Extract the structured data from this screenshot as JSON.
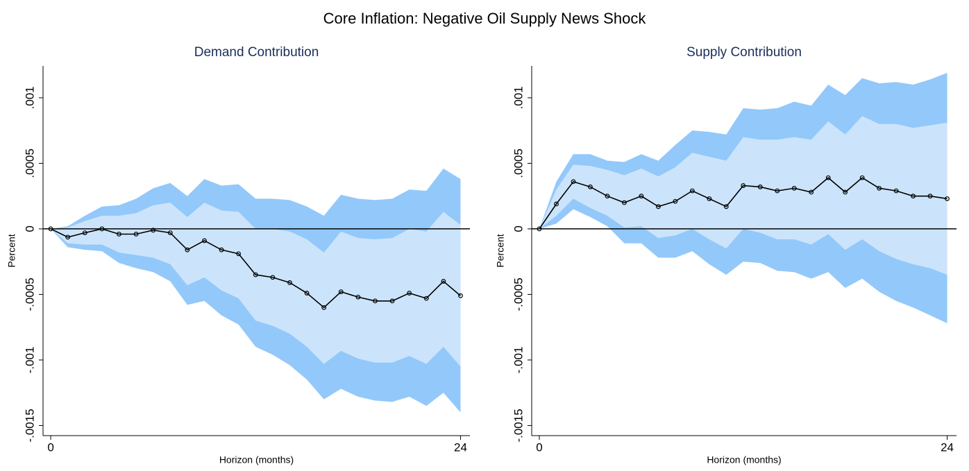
{
  "title": "Core Inflation: Negative Oil Supply News Shock",
  "chart_data": [
    {
      "type": "line",
      "title": "Demand Contribution",
      "xlabel": "Horizon (months)",
      "ylabel": "Percent",
      "x": [
        0,
        1,
        2,
        3,
        4,
        5,
        6,
        7,
        8,
        9,
        10,
        11,
        12,
        13,
        14,
        15,
        16,
        17,
        18,
        19,
        20,
        21,
        22,
        23,
        24
      ],
      "values": [
        0,
        -6.3e-05,
        -3e-05,
        0,
        -4e-05,
        -4e-05,
        -1e-05,
        -3e-05,
        -0.00016,
        -9e-05,
        -0.00016,
        -0.00019,
        -0.00035,
        -0.00037,
        -0.00041,
        -0.00049,
        -0.0006,
        -0.00048,
        -0.00052,
        -0.00055,
        -0.00055,
        -0.00049,
        -0.00053,
        -0.0004,
        -0.00051
      ],
      "color": "#000000",
      "bands": [
        {
          "color": "#93c8fa",
          "upper": [
            0,
            2e-05,
            0.0001,
            0.00017,
            0.00018,
            0.00023,
            0.00031,
            0.00035,
            0.00025,
            0.00038,
            0.00033,
            0.00034,
            0.00023,
            0.00023,
            0.00022,
            0.00017,
            0.0001,
            0.00026,
            0.00023,
            0.00022,
            0.00023,
            0.0003,
            0.00029,
            0.00046,
            0.00038
          ],
          "lower": [
            0,
            -0.00014,
            -0.00016,
            -0.00017,
            -0.00026,
            -0.0003,
            -0.00033,
            -0.0004,
            -0.00058,
            -0.00055,
            -0.00066,
            -0.00073,
            -0.0009,
            -0.00096,
            -0.00104,
            -0.00115,
            -0.0013,
            -0.00122,
            -0.00128,
            -0.00131,
            -0.00132,
            -0.00128,
            -0.00135,
            -0.00125,
            -0.0014
          ]
        },
        {
          "color": "#cbe4fb",
          "upper": [
            0,
            1e-05,
            6e-05,
            0.0001,
            0.0001,
            0.00012,
            0.00018,
            0.0002,
            9e-05,
            0.0002,
            0.00014,
            0.00013,
            0,
            0,
            -2e-05,
            -8e-05,
            -0.00018,
            -2e-05,
            -7e-05,
            -8e-05,
            -7e-05,
            0,
            -2e-05,
            0.00013,
            3e-05
          ],
          "lower": [
            0,
            -0.00011,
            -0.00012,
            -0.00012,
            -0.00018,
            -0.0002,
            -0.00022,
            -0.00027,
            -0.00043,
            -0.00037,
            -0.00047,
            -0.00053,
            -0.0007,
            -0.00074,
            -0.0008,
            -0.0009,
            -0.00103,
            -0.00093,
            -0.00099,
            -0.00102,
            -0.00102,
            -0.00097,
            -0.00103,
            -0.0009,
            -0.00105
          ]
        }
      ],
      "hline": 0,
      "xlim": [
        -0.45,
        24.55
      ],
      "ylim": [
        -0.001577,
        0.001243
      ],
      "xticks": [
        0,
        24
      ],
      "yticks": [
        {
          "value": 0.001,
          "label": ".001"
        },
        {
          "value": 0.0005,
          "label": ".0005"
        },
        0,
        {
          "value": -0.0005,
          "label": "-.0005"
        },
        {
          "value": -0.001,
          "label": "-.001"
        },
        {
          "value": -0.0015,
          "label": "-.0015"
        }
      ]
    },
    {
      "type": "line",
      "title": "Supply Contribution",
      "xlabel": "Horizon (months)",
      "ylabel": "Percent",
      "x": [
        0,
        1,
        2,
        3,
        4,
        5,
        6,
        7,
        8,
        9,
        10,
        11,
        12,
        13,
        14,
        15,
        16,
        17,
        18,
        19,
        20,
        21,
        22,
        23,
        24
      ],
      "values": [
        0,
        0.00019,
        0.00036,
        0.00032,
        0.00025,
        0.0002,
        0.00025,
        0.00017,
        0.00021,
        0.00029,
        0.00023,
        0.00017,
        0.00033,
        0.00032,
        0.00029,
        0.00031,
        0.00028,
        0.00039,
        0.00028,
        0.00039,
        0.00031,
        0.00029,
        0.00025,
        0.00025,
        0.00023
      ],
      "color": "#000000",
      "bands": [
        {
          "color": "#93c8fa",
          "upper": [
            0,
            0.00036,
            0.00057,
            0.00057,
            0.00052,
            0.00051,
            0.00057,
            0.00052,
            0.00064,
            0.00075,
            0.00074,
            0.00072,
            0.00092,
            0.00091,
            0.00092,
            0.00097,
            0.00094,
            0.0011,
            0.00102,
            0.00115,
            0.00111,
            0.00112,
            0.0011,
            0.00114,
            0.00119
          ],
          "lower": [
            0,
            4e-05,
            0.00015,
            9e-05,
            2e-05,
            -0.00011,
            -0.00011,
            -0.00022,
            -0.00022,
            -0.00017,
            -0.00027,
            -0.00035,
            -0.00025,
            -0.00026,
            -0.00032,
            -0.00033,
            -0.00038,
            -0.00033,
            -0.00045,
            -0.00038,
            -0.00048,
            -0.00055,
            -0.0006,
            -0.00066,
            -0.00072
          ]
        },
        {
          "color": "#cbe4fb",
          "upper": [
            0,
            0.0003,
            0.00049,
            0.00048,
            0.00045,
            0.00041,
            0.00046,
            0.0004,
            0.00047,
            0.00058,
            0.00055,
            0.00052,
            0.0007,
            0.00068,
            0.00068,
            0.0007,
            0.00068,
            0.00082,
            0.00072,
            0.00086,
            0.0008,
            0.0008,
            0.00077,
            0.00079,
            0.00081
          ],
          "lower": [
            0,
            0.0001,
            0.00023,
            0.00016,
            0.0001,
            1e-05,
            2e-05,
            -7e-05,
            -5e-05,
            0,
            -8e-05,
            -0.00015,
            0,
            -3e-05,
            -8e-05,
            -8e-05,
            -0.00012,
            -4e-05,
            -0.00016,
            -8e-05,
            -0.00017,
            -0.00023,
            -0.00027,
            -0.0003,
            -0.00035
          ]
        }
      ],
      "hline": 0,
      "xlim": [
        -0.45,
        24.55
      ],
      "ylim": [
        -0.001577,
        0.001243
      ],
      "xticks": [
        0,
        24
      ],
      "yticks": [
        {
          "value": 0.001,
          "label": ".001"
        },
        {
          "value": 0.0005,
          "label": ".0005"
        },
        0,
        {
          "value": -0.0005,
          "label": "-.0005"
        },
        {
          "value": -0.001,
          "label": "-.001"
        },
        {
          "value": -0.0015,
          "label": "-.0015"
        }
      ]
    }
  ]
}
